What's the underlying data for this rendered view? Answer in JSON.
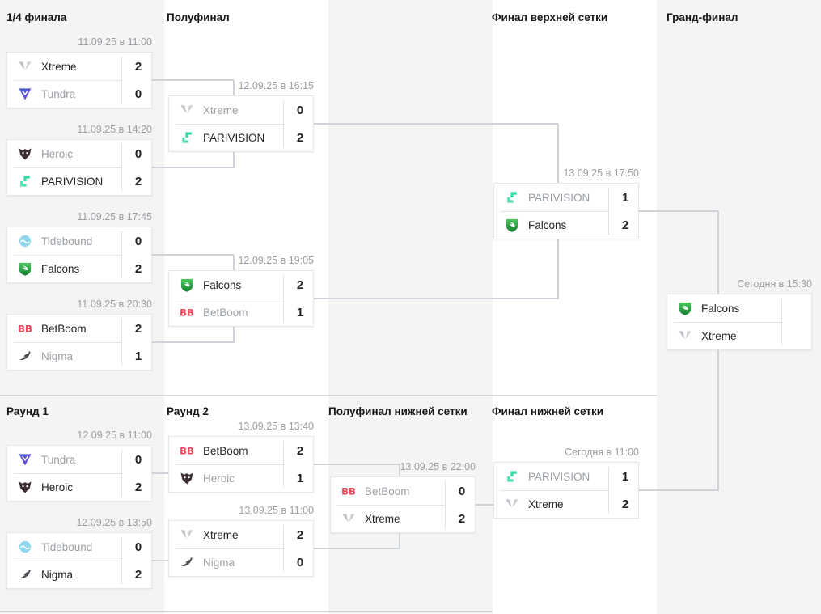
{
  "page": {
    "stripe_gray": "#f4f4f5",
    "stripe_white": "#ffffff",
    "connector_color": "#cdd3d9",
    "winner_text_color": "#222426",
    "loser_text_color": "#9ba0a5"
  },
  "sections": {
    "upper": {
      "headers": [
        {
          "id": "uqf",
          "label": "1/4 финала"
        },
        {
          "id": "usf",
          "label": "Полуфинал"
        },
        {
          "id": "ubf",
          "label": "Финал верхней сетки"
        },
        {
          "id": "gf",
          "label": "Гранд-финал"
        }
      ]
    },
    "lower": {
      "headers": [
        {
          "id": "lr1",
          "label": "Раунд 1"
        },
        {
          "id": "lr2",
          "label": "Раунд 2"
        },
        {
          "id": "lsf",
          "label": "Полуфинал нижней сетки"
        },
        {
          "id": "lbf",
          "label": "Финал нижней сетки"
        }
      ]
    }
  },
  "logo_colors": {
    "xtreme": "#bfc3c7",
    "tundra": "#4a56c8",
    "heroic": "#3d2f33",
    "parivision": "#35dca4",
    "tidebound": "#8fd6ee",
    "falcons": "#2fae47",
    "betboom": "#e8475a",
    "nigma": "#4b4f54"
  },
  "matches": [
    {
      "id": "uf-qf-1",
      "datetime": "11.09.25 в 11:00",
      "teams": [
        {
          "name": "Xtreme",
          "logo": "xtreme",
          "score": "2",
          "dim": false
        },
        {
          "name": "Tundra",
          "logo": "tundra",
          "score": "0",
          "dim": true
        }
      ]
    },
    {
      "id": "uf-qf-2",
      "datetime": "11.09.25 в 14:20",
      "teams": [
        {
          "name": "Heroic",
          "logo": "heroic",
          "score": "0",
          "dim": true
        },
        {
          "name": "PARIVISION",
          "logo": "parivision",
          "score": "2",
          "dim": false
        }
      ]
    },
    {
      "id": "uf-qf-3",
      "datetime": "11.09.25 в 17:45",
      "teams": [
        {
          "name": "Tidebound",
          "logo": "tidebound",
          "score": "0",
          "dim": true
        },
        {
          "name": "Falcons",
          "logo": "falcons",
          "score": "2",
          "dim": false
        }
      ]
    },
    {
      "id": "uf-qf-4",
      "datetime": "11.09.25 в 20:30",
      "teams": [
        {
          "name": "BetBoom",
          "logo": "betboom",
          "score": "2",
          "dim": false
        },
        {
          "name": "Nigma",
          "logo": "nigma",
          "score": "1",
          "dim": true
        }
      ]
    },
    {
      "id": "uf-sf-1",
      "datetime": "12.09.25 в 16:15",
      "teams": [
        {
          "name": "Xtreme",
          "logo": "xtreme",
          "score": "0",
          "dim": true
        },
        {
          "name": "PARIVISION",
          "logo": "parivision",
          "score": "2",
          "dim": false
        }
      ]
    },
    {
      "id": "uf-sf-2",
      "datetime": "12.09.25 в 19:05",
      "teams": [
        {
          "name": "Falcons",
          "logo": "falcons",
          "score": "2",
          "dim": false
        },
        {
          "name": "BetBoom",
          "logo": "betboom",
          "score": "1",
          "dim": true
        }
      ]
    },
    {
      "id": "uf-final",
      "datetime": "13.09.25 в 17:50",
      "teams": [
        {
          "name": "PARIVISION",
          "logo": "parivision",
          "score": "1",
          "dim": true
        },
        {
          "name": "Falcons",
          "logo": "falcons",
          "score": "2",
          "dim": false
        }
      ]
    },
    {
      "id": "grand-final",
      "datetime": "Сегодня в 15:30",
      "teams": [
        {
          "name": "Falcons",
          "logo": "falcons",
          "score": "",
          "dim": false
        },
        {
          "name": "Xtreme",
          "logo": "xtreme",
          "score": "",
          "dim": false
        }
      ]
    },
    {
      "id": "lb-r1-1",
      "datetime": "12.09.25 в 11:00",
      "teams": [
        {
          "name": "Tundra",
          "logo": "tundra",
          "score": "0",
          "dim": true
        },
        {
          "name": "Heroic",
          "logo": "heroic",
          "score": "2",
          "dim": false
        }
      ]
    },
    {
      "id": "lb-r1-2",
      "datetime": "12.09.25 в 13:50",
      "teams": [
        {
          "name": "Tidebound",
          "logo": "tidebound",
          "score": "0",
          "dim": true
        },
        {
          "name": "Nigma",
          "logo": "nigma",
          "score": "2",
          "dim": false
        }
      ]
    },
    {
      "id": "lb-r2-1",
      "datetime": "13.09.25 в 13:40",
      "teams": [
        {
          "name": "BetBoom",
          "logo": "betboom",
          "score": "2",
          "dim": false
        },
        {
          "name": "Heroic",
          "logo": "heroic",
          "score": "1",
          "dim": true
        }
      ]
    },
    {
      "id": "lb-r2-2",
      "datetime": "13.09.25 в 11:00",
      "teams": [
        {
          "name": "Xtreme",
          "logo": "xtreme",
          "score": "2",
          "dim": false
        },
        {
          "name": "Nigma",
          "logo": "nigma",
          "score": "0",
          "dim": true
        }
      ]
    },
    {
      "id": "lb-sf",
      "datetime": "13.09.25 в 22:00",
      "teams": [
        {
          "name": "BetBoom",
          "logo": "betboom",
          "score": "0",
          "dim": true
        },
        {
          "name": "Xtreme",
          "logo": "xtreme",
          "score": "2",
          "dim": false
        }
      ]
    },
    {
      "id": "lb-final",
      "datetime": "Сегодня в 11:00",
      "teams": [
        {
          "name": "PARIVISION",
          "logo": "parivision",
          "score": "1",
          "dim": true
        },
        {
          "name": "Xtreme",
          "logo": "xtreme",
          "score": "2",
          "dim": false
        }
      ]
    }
  ]
}
